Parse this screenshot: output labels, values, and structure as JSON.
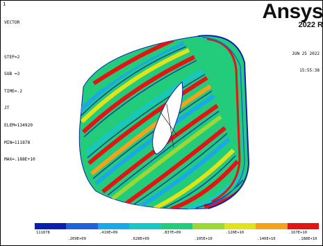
{
  "window_number": "1",
  "brand": {
    "logo": "Ansys",
    "version": "2022 R"
  },
  "info": [
    "VECTOR",
    "",
    "STEP=2",
    "SUB =3",
    "TIME=.2",
    "JT",
    "ELEM=134920",
    "MIN=111878",
    "MAX=.188E+10"
  ],
  "stamp": {
    "date": "JUN 25 2022",
    "time": "15:55:38"
  },
  "legend": {
    "colors": [
      "#0b1fae",
      "#1f63d8",
      "#1ba8e8",
      "#18c6c6",
      "#22cc7a",
      "#9bd836",
      "#e2e21a",
      "#f4a21c",
      "#e21515"
    ],
    "top_labels": [
      "111878",
      ".419E+09",
      ".837E+09",
      ".126E+10",
      ".167E+10"
    ],
    "bottom_labels": [
      ".209E+09",
      ".628E+09",
      ".105E+10",
      ".146E+10",
      ".188E+10"
    ]
  }
}
